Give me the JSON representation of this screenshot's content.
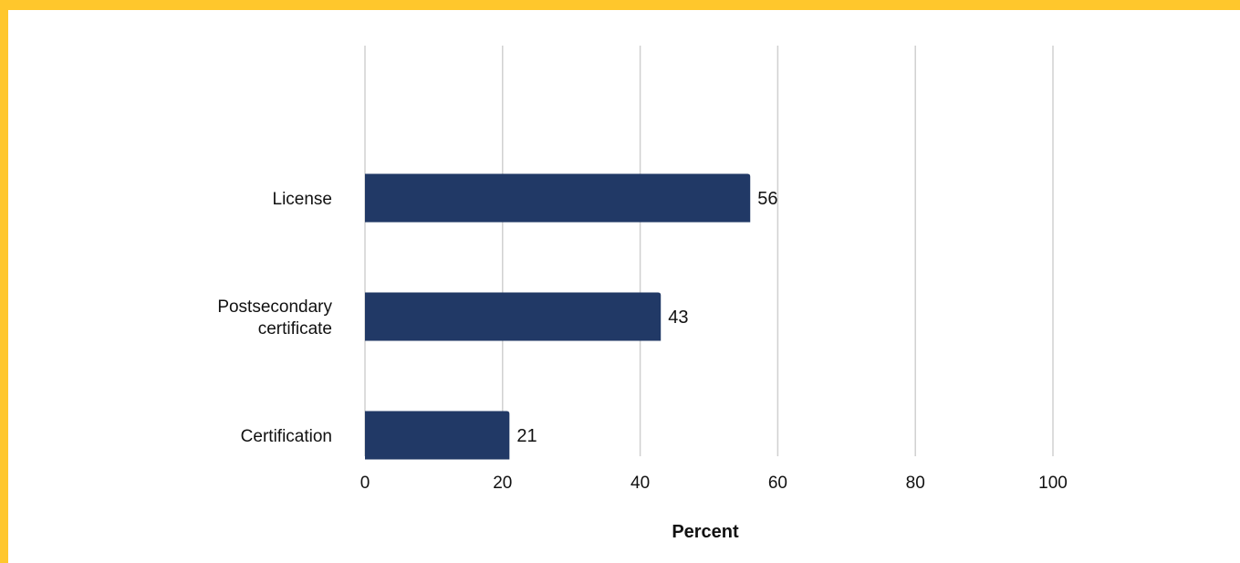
{
  "chart_data": {
    "type": "bar",
    "orientation": "horizontal",
    "categories": [
      "License",
      "Postsecondary certificate",
      "Certification"
    ],
    "category_lines": [
      [
        "License"
      ],
      [
        "Postsecondary",
        "certificate"
      ],
      [
        "Certification"
      ]
    ],
    "values": [
      56,
      43,
      21
    ],
    "data_labels": [
      "56",
      "43",
      "21"
    ],
    "xlabel": "Percent",
    "xlim": [
      0,
      100
    ],
    "x_ticks": [
      0,
      20,
      40,
      60,
      80,
      100
    ],
    "x_tick_labels": [
      "0",
      "20",
      "40",
      "60",
      "80",
      "100"
    ],
    "grid": true,
    "legend": "none"
  },
  "colors": {
    "bar": "#213966",
    "border": "#FFC72C",
    "grid": "#d0d0d0"
  }
}
